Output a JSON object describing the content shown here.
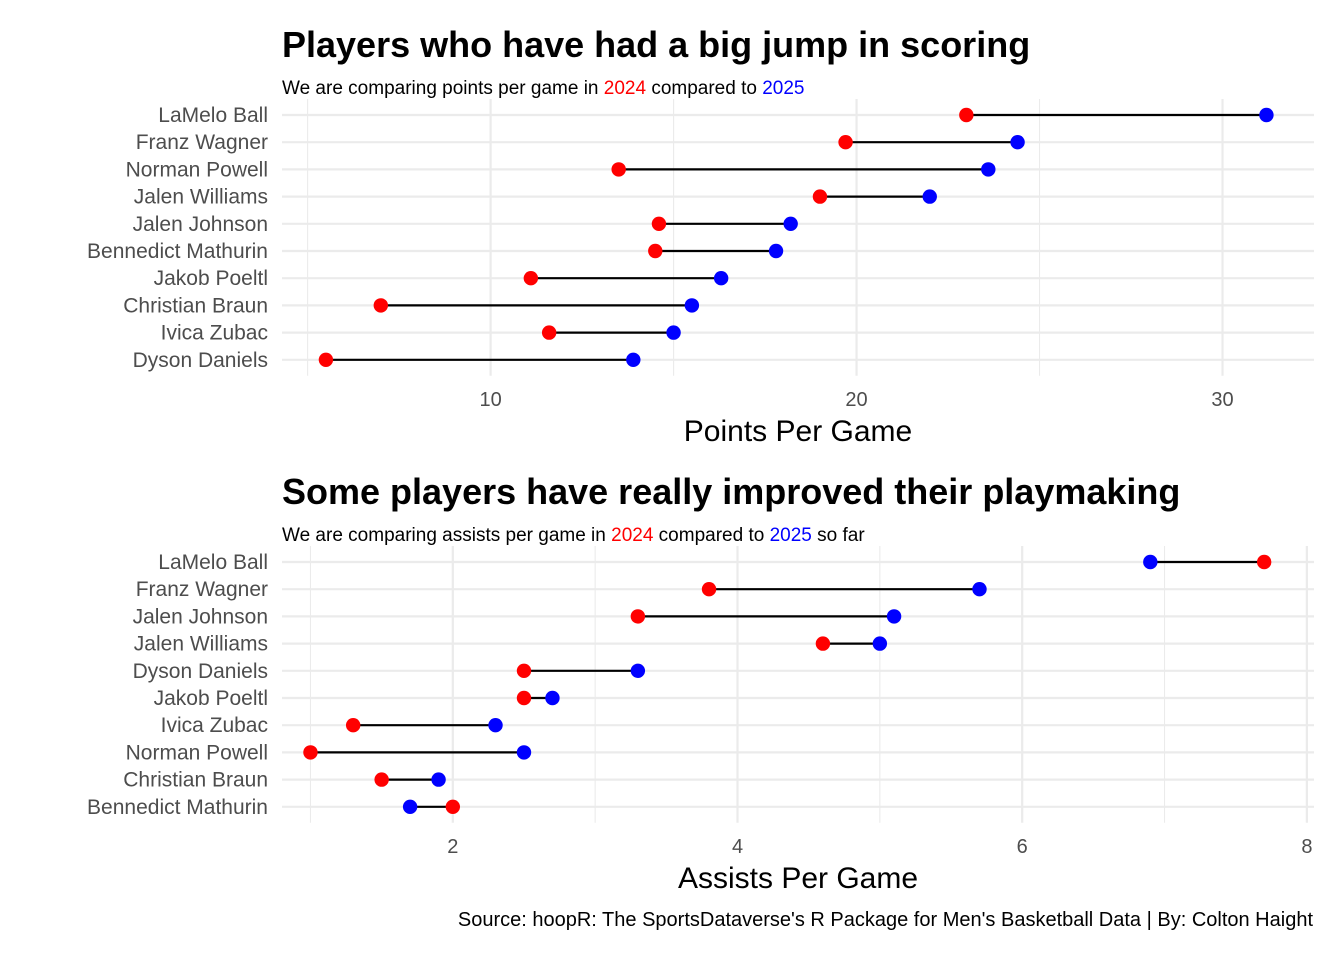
{
  "colors": {
    "year1": "#ff0000",
    "year2": "#0000ff",
    "segment": "#000000",
    "grid": "#ebebeb"
  },
  "caption": "Source: hoopR: The SportsDataverse's R Package for Men's Basketball Data | By: Colton Haight",
  "chart_data": [
    {
      "type": "dumbbell",
      "title": "Players who have had a big jump in scoring",
      "subtitle": {
        "before": "We are comparing points per game in ",
        "year1": "2024",
        "middle": " compared to ",
        "year2": "2025",
        "after": ""
      },
      "xlabel": "Points Per Game",
      "ylabel": "",
      "xlim": [
        4.3,
        32.5
      ],
      "xticks": [
        10,
        20,
        30
      ],
      "grid": true,
      "legend": "none",
      "categories": [
        "LaMelo Ball",
        "Franz Wagner",
        "Norman Powell",
        "Jalen Williams",
        "Jalen Johnson",
        "Bennedict Mathurin",
        "Jakob Poeltl",
        "Christian Braun",
        "Ivica Zubac",
        "Dyson Daniels"
      ],
      "series": [
        {
          "name": "2024",
          "color": "#ff0000",
          "values": [
            23.0,
            19.7,
            13.5,
            19.0,
            14.6,
            14.5,
            11.1,
            7.0,
            11.6,
            5.5
          ]
        },
        {
          "name": "2025",
          "color": "#0000ff",
          "values": [
            31.2,
            24.4,
            23.6,
            22.0,
            18.2,
            17.8,
            16.3,
            15.5,
            15.0,
            13.9
          ]
        }
      ]
    },
    {
      "type": "dumbbell",
      "title": "Some players have really improved their playmaking",
      "subtitle": {
        "before": "We are comparing assists per game in ",
        "year1": "2024",
        "middle": " compared to ",
        "year2": "2025",
        "after": " so far"
      },
      "xlabel": "Assists Per Game",
      "ylabel": "",
      "xlim": [
        0.8,
        8.05
      ],
      "xticks": [
        2,
        4,
        6,
        8
      ],
      "grid": true,
      "legend": "none",
      "categories": [
        "LaMelo Ball",
        "Franz Wagner",
        "Jalen Johnson",
        "Jalen Williams",
        "Dyson Daniels",
        "Jakob Poeltl",
        "Ivica Zubac",
        "Norman Powell",
        "Christian Braun",
        "Bennedict Mathurin"
      ],
      "series": [
        {
          "name": "2024",
          "color": "#ff0000",
          "values": [
            7.7,
            3.8,
            3.3,
            4.6,
            2.5,
            2.5,
            1.3,
            1.0,
            1.5,
            2.0
          ]
        },
        {
          "name": "2025",
          "color": "#0000ff",
          "values": [
            6.9,
            5.7,
            5.1,
            5.0,
            3.3,
            2.7,
            2.3,
            2.5,
            1.9,
            1.7
          ]
        }
      ]
    }
  ]
}
